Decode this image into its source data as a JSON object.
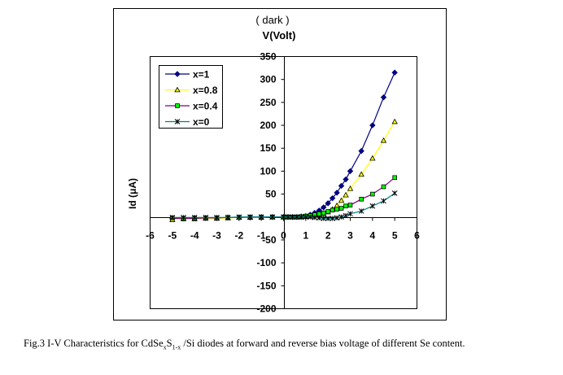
{
  "chart_data": {
    "type": "line",
    "title": "( dark )",
    "xlabel": "V(Volt)",
    "ylabel": "Id  (μA)",
    "xlim": [
      -6,
      6
    ],
    "ylim": [
      -200,
      350
    ],
    "xticks": [
      -6,
      -5,
      -4,
      -3,
      -2,
      -1,
      0,
      1,
      2,
      3,
      4,
      5,
      6
    ],
    "yticks": [
      -200,
      -150,
      -100,
      -50,
      0,
      50,
      100,
      150,
      200,
      250,
      300,
      350
    ],
    "legend_position": "top-left",
    "grid": false,
    "x": [
      -5,
      -4.5,
      -4,
      -3.5,
      -3,
      -2.5,
      -2,
      -1.5,
      -1,
      -0.5,
      0,
      0.2,
      0.4,
      0.6,
      0.8,
      1.0,
      1.2,
      1.4,
      1.6,
      1.8,
      2.0,
      2.2,
      2.4,
      2.6,
      2.8,
      3.0,
      3.5,
      4.0,
      4.5,
      5.0
    ],
    "series": [
      {
        "name": "x=1",
        "color": "#000080",
        "marker": "diamond",
        "marker_fill": "#000080",
        "values": [
          -3,
          -3,
          -2,
          -2,
          -2,
          -1,
          -1,
          -1,
          0,
          0,
          0,
          0,
          0,
          0,
          1,
          2,
          5,
          9,
          14,
          21,
          30,
          41,
          53,
          68,
          82,
          100,
          144,
          200,
          261,
          315
        ]
      },
      {
        "name": "x=0.8",
        "color": "#FFFF00",
        "marker": "triangle",
        "marker_fill": "#FFFF00",
        "values": [
          -6,
          -4,
          -4,
          -3,
          -3,
          -2,
          -1,
          -1,
          -1,
          0,
          0,
          0,
          0,
          0,
          0,
          1,
          2,
          3,
          5,
          7,
          11,
          17,
          25,
          36,
          48,
          62,
          93,
          128,
          167,
          208
        ]
      },
      {
        "name": "x=0.4",
        "color": "#800080",
        "marker": "square",
        "marker_fill": "#00FF00",
        "values": [
          -2,
          -3,
          -3,
          -2,
          -2,
          -1,
          -1,
          0,
          0,
          0,
          0,
          0,
          0,
          0,
          1,
          2,
          3,
          5,
          7,
          9,
          12,
          15,
          17,
          19,
          24,
          26,
          39,
          50,
          66,
          86
        ]
      },
      {
        "name": "x=0",
        "color": "#008080",
        "marker": "star",
        "marker_fill": "#000000",
        "values": [
          -1,
          -1,
          -1,
          -1,
          -1,
          -1,
          0,
          0,
          0,
          0,
          0,
          0,
          0,
          0,
          0,
          0,
          0,
          -1,
          -2,
          -3,
          -3,
          -3,
          -2,
          0,
          3,
          7,
          13,
          24,
          35,
          52
        ]
      }
    ]
  },
  "caption": {
    "prefix": "Fig.3   I-V Characteristics for CdSe",
    "sub1": "x",
    "mid": "S",
    "sub2": "1-x",
    "suffix": " /Si  diodes at forward and reverse bias voltage of different Se content."
  }
}
